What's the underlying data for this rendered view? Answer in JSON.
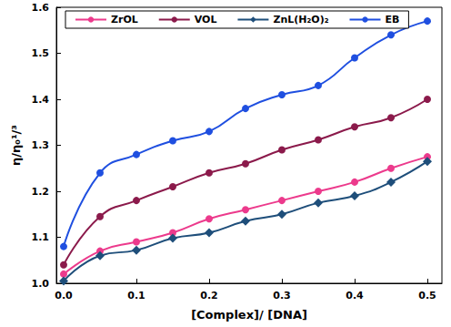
{
  "chart_data": {
    "type": "line",
    "xlabel": "[Complex]/ [DNA]",
    "ylabel": "η/η₀¹/³",
    "x": [
      0,
      0.05,
      0.1,
      0.15,
      0.2,
      0.25,
      0.3,
      0.35,
      0.4,
      0.45,
      0.5
    ],
    "series": [
      {
        "name": "ZrOL",
        "color": "#ec3a8c",
        "marker": "circle",
        "values": [
          1.02,
          1.07,
          1.09,
          1.11,
          1.14,
          1.16,
          1.18,
          1.2,
          1.22,
          1.25,
          1.275
        ]
      },
      {
        "name": "VOL",
        "color": "#8b1a4b",
        "marker": "circle",
        "values": [
          1.04,
          1.145,
          1.18,
          1.21,
          1.24,
          1.26,
          1.29,
          1.312,
          1.34,
          1.36,
          1.4
        ]
      },
      {
        "name": "ZnL(H₂O)₂",
        "color": "#1e4e7a",
        "marker": "diamond",
        "values": [
          1.005,
          1.06,
          1.072,
          1.098,
          1.11,
          1.135,
          1.15,
          1.175,
          1.19,
          1.22,
          1.265
        ]
      },
      {
        "name": "EB",
        "color": "#1f4fe0",
        "marker": "circle",
        "values": [
          1.08,
          1.24,
          1.28,
          1.31,
          1.33,
          1.38,
          1.41,
          1.43,
          1.49,
          1.54,
          1.57
        ]
      }
    ],
    "xlim": [
      -0.01,
      0.52
    ],
    "xticks": [
      {
        "value": 0,
        "label": "0.0"
      },
      0.1,
      0.2,
      0.3,
      0.4,
      0.5
    ],
    "ylim": [
      1.0,
      1.6
    ],
    "yticks": [
      {
        "value": 1.0,
        "label": "1.0"
      },
      1.1,
      1.2,
      1.3,
      1.4,
      1.5,
      1.6
    ],
    "legend": "top",
    "line_style": "solid",
    "grid": false
  }
}
